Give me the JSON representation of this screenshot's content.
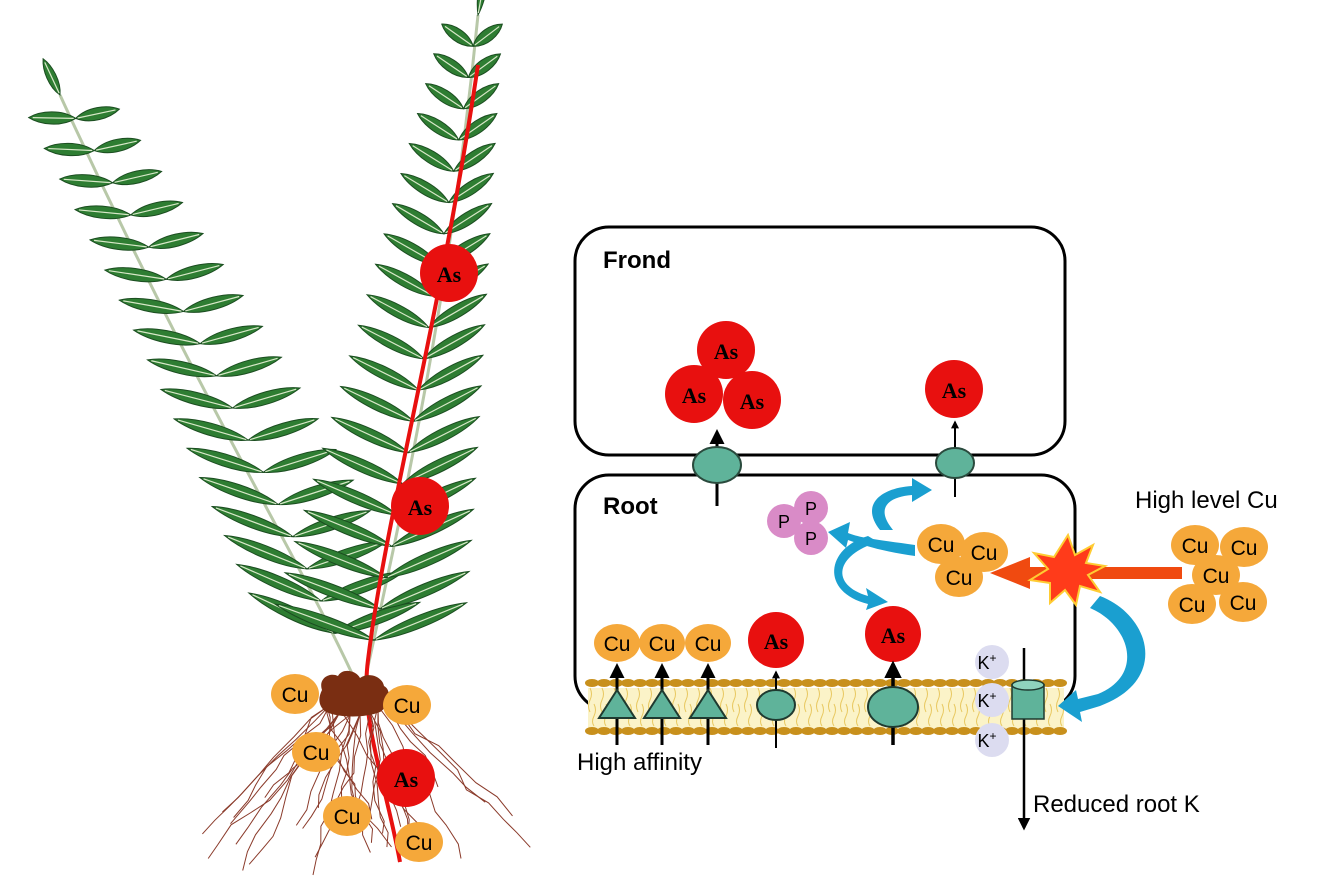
{
  "labels": {
    "frond": "Frond",
    "root": "Root",
    "high_level_cu": "High level Cu",
    "high_affinity": "High affinity",
    "reduced_root_k": "Reduced root K"
  },
  "ions": {
    "arsenic": "As",
    "copper": "Cu",
    "phosphorus": "P",
    "potassium": "K",
    "potassium_charge": "+"
  },
  "colors": {
    "arsenic": "#e8100f",
    "copper": "#f5a83a",
    "phosphorus": "#d98bc7",
    "potassium": "#dcdcf0",
    "transporter": "#5fb39a",
    "cyan_arrow": "#1a9fd0",
    "red_arrow": "#f04a10",
    "burst": "#ff3b1a",
    "leaf": "#2e7d32",
    "rhizome": "#7a2e12",
    "membrane": "#c8901c"
  }
}
